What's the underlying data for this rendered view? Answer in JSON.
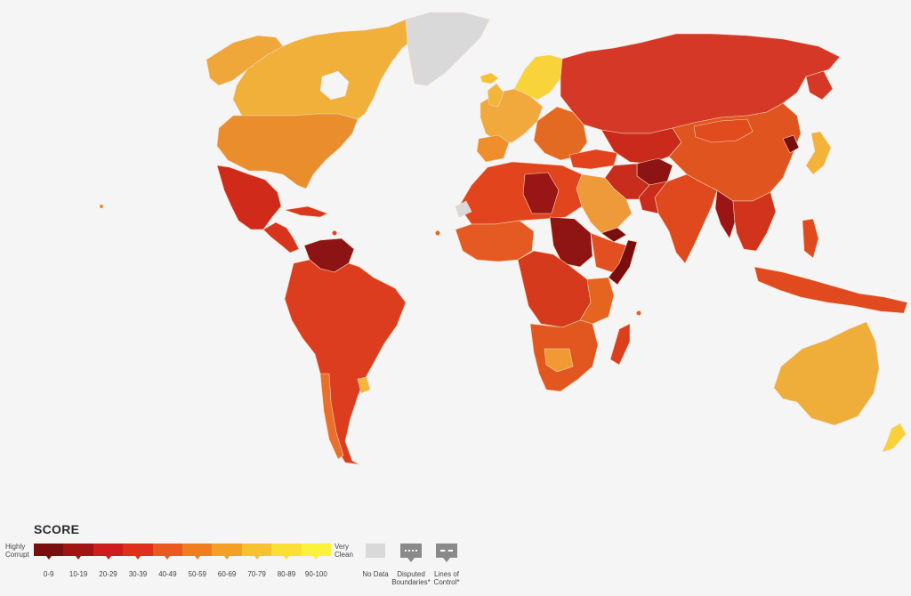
{
  "legend": {
    "title": "SCORE",
    "left_label": [
      "Highly",
      "Corrupt"
    ],
    "right_label": [
      "Very",
      "Clean"
    ],
    "bins": [
      "0-9",
      "10-19",
      "20-29",
      "30-39",
      "40-49",
      "50-59",
      "60-69",
      "70-79",
      "80-89",
      "90-100"
    ],
    "bin_colors": [
      "#7a0e0e",
      "#a11414",
      "#cf1d1d",
      "#e0301c",
      "#ea5a1e",
      "#f07e1f",
      "#f49f26",
      "#f7c12f",
      "#f9df36",
      "#fcf23c"
    ],
    "no_data": "No Data",
    "disputed": [
      "Disputed",
      "Boundaries*"
    ],
    "lines": [
      "Lines of",
      "Control*"
    ]
  },
  "colors": {
    "no_data": "#d9d9d9",
    "water": "#f5f5f5",
    "border": "#f3d7b8"
  }
}
